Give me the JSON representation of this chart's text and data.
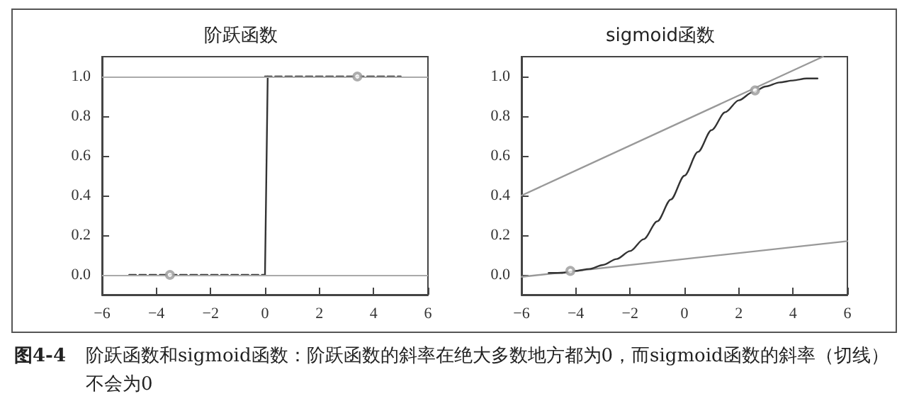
{
  "chart_data": [
    {
      "type": "line",
      "title": "阶跃函数",
      "xlim": [
        -6,
        6
      ],
      "xticks": [
        {
          "value": -6,
          "label": "−6"
        },
        {
          "value": -4,
          "label": "−4"
        },
        {
          "value": -2,
          "label": "−2"
        },
        0,
        2,
        4,
        6
      ],
      "ylim": [
        -0.1,
        1.1
      ],
      "yticks": [
        {
          "value": 0,
          "label": "0.0"
        },
        {
          "value": 0.2,
          "label": "0.2"
        },
        {
          "value": 0.4,
          "label": "0.4"
        },
        {
          "value": 0.6,
          "label": "0.6"
        },
        {
          "value": 0.8,
          "label": "0.8"
        },
        {
          "value": 1,
          "label": "1.0"
        }
      ],
      "ref_lines": [
        {
          "axis": "y",
          "value": 0,
          "color": "#aaaaaa"
        },
        {
          "axis": "y",
          "value": 1,
          "color": "#aaaaaa"
        }
      ],
      "series": [
        {
          "type": "line",
          "line_style": "dashed",
          "color": "#333333",
          "x": [
            -5,
            0
          ],
          "values": [
            0,
            0
          ]
        },
        {
          "type": "line",
          "line_style": "dashed",
          "color": "#333333",
          "x": [
            0,
            5
          ],
          "values": [
            1,
            1
          ]
        },
        {
          "type": "line",
          "line_style": "solid",
          "color": "#333333",
          "x": [
            0,
            0.1
          ],
          "values": [
            0,
            1
          ]
        },
        {
          "type": "scatter",
          "marker": "circle",
          "color": "#999999",
          "x": [
            -3.5,
            3.4
          ],
          "values": [
            0,
            1
          ]
        }
      ]
    },
    {
      "type": "line",
      "title": "sigmoid函数",
      "xlim": [
        -6,
        6
      ],
      "xticks": [
        {
          "value": -6,
          "label": "−6"
        },
        {
          "value": -4,
          "label": "−4"
        },
        {
          "value": -2,
          "label": "−2"
        },
        0,
        2,
        4,
        6
      ],
      "ylim": [
        -0.1,
        1.1
      ],
      "yticks": [
        {
          "value": 0,
          "label": "0.0"
        },
        {
          "value": 0.2,
          "label": "0.2"
        },
        {
          "value": 0.4,
          "label": "0.4"
        },
        {
          "value": 0.6,
          "label": "0.6"
        },
        {
          "value": 0.8,
          "label": "0.8"
        },
        {
          "value": 1,
          "label": "1.0"
        }
      ],
      "series": [
        {
          "type": "line",
          "line_style": "solid",
          "color": "#999999",
          "x": [
            -6,
            6
          ],
          "values": [
            -0.01,
            0.17
          ]
        },
        {
          "type": "line",
          "line_style": "solid",
          "color": "#999999",
          "x": [
            -6,
            5.1
          ],
          "values": [
            0.4,
            1.1
          ]
        },
        {
          "type": "line",
          "line_style": "solid",
          "color": "#333333",
          "x": [
            -5,
            -4.5,
            -4,
            -3.5,
            -3,
            -2.5,
            -2,
            -1.5,
            -1,
            -0.5,
            0,
            0.5,
            1,
            1.5,
            2,
            2.5,
            3,
            3.5,
            4,
            4.5,
            4.9
          ],
          "values": [
            0.01,
            0.01,
            0.02,
            0.03,
            0.05,
            0.08,
            0.12,
            0.18,
            0.27,
            0.38,
            0.5,
            0.62,
            0.73,
            0.82,
            0.88,
            0.92,
            0.95,
            0.97,
            0.98,
            0.99,
            0.99
          ]
        },
        {
          "type": "scatter",
          "marker": "circle",
          "color": "#999999",
          "x": [
            -4.2,
            2.6
          ],
          "values": [
            0.02,
            0.93
          ]
        }
      ]
    },
    {
      "type": "other",
      "annotations": [
        "图4-4",
        "阶跃函数和sigmoid函数：阶跃函数的斜率在绝大多数地方都为0，而sigmoid函数的斜率（切线）不会为0"
      ]
    }
  ]
}
